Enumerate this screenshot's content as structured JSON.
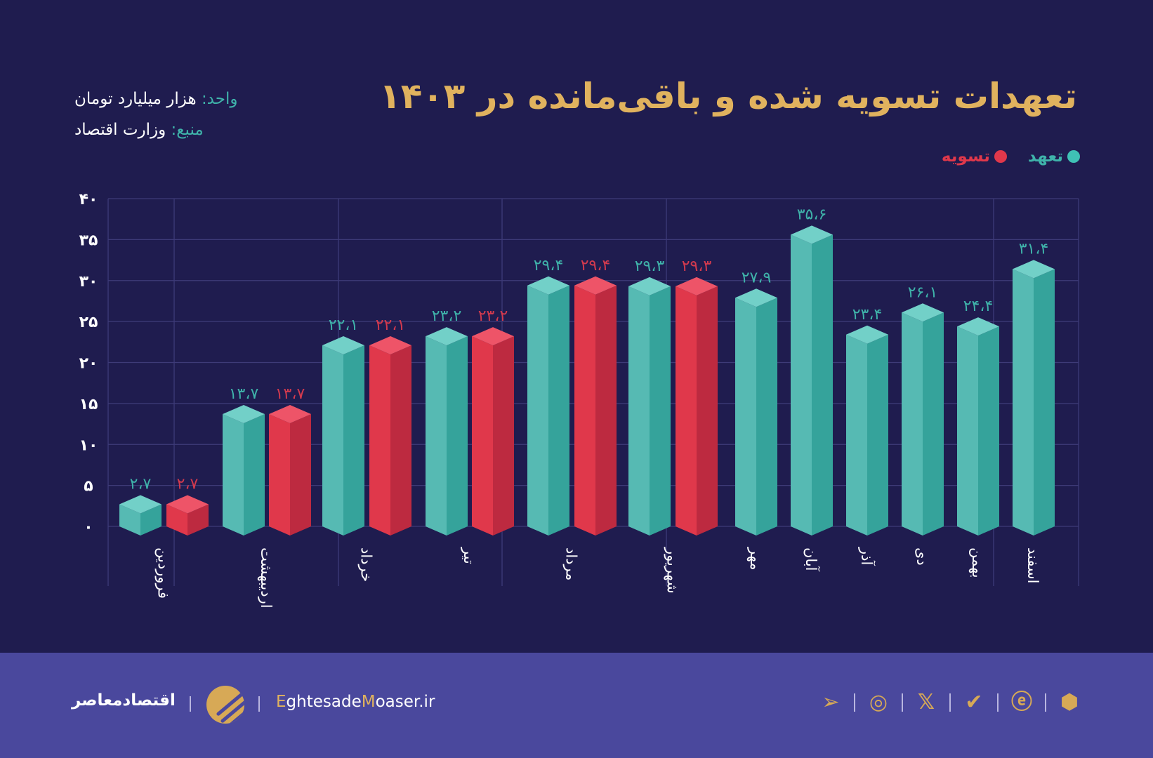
{
  "header": {
    "title": "تعهدات تسویه شده و باقی‌مانده در ۱۴۰۳",
    "unit_key": "واحد:",
    "unit_value": "هزار میلیارد تومان",
    "source_key": "منبع:",
    "source_value": "وزارت اقتصاد"
  },
  "colors": {
    "background": "#1f1c4f",
    "teal": "#4fb8b0",
    "red": "#e0384b",
    "gold": "#e0b25e",
    "footer": "#4a489d"
  },
  "chart_data": {
    "type": "bar",
    "style": "3d-isometric",
    "categories": [
      "فروردین",
      "اردیبهشت",
      "خرداد",
      "تیر",
      "مرداد",
      "شهریور",
      "مهر",
      "آبان",
      "آذر",
      "دی",
      "بهمن",
      "اسفند"
    ],
    "series": [
      {
        "name": "تعهد",
        "color": "#4fb8b0",
        "values": [
          2.7,
          13.7,
          22.1,
          23.2,
          29.4,
          29.3,
          27.9,
          35.6,
          23.4,
          26.1,
          24.4,
          31.4
        ]
      },
      {
        "name": "تسویه",
        "color": "#e0384b",
        "values": [
          2.7,
          13.7,
          22.1,
          23.2,
          29.4,
          29.3,
          null,
          null,
          null,
          null,
          null,
          null
        ]
      }
    ],
    "yticks": [
      0,
      5,
      10,
      15,
      20,
      25,
      30,
      35,
      40
    ],
    "ylim": [
      0,
      40
    ],
    "grid": true,
    "legend": "top-right",
    "number_format": "persian-digits, arabic decimal comma"
  },
  "footer": {
    "brand_fa": "اقتصادمعاصر",
    "site_g1": "E",
    "site_p1": "ghtesade",
    "site_g2": "M",
    "site_p2": "oaser.ir",
    "socials": [
      "telegram-icon",
      "instagram-icon",
      "x-icon",
      "bale-icon",
      "eitaa-icon",
      "rubika-icon"
    ]
  }
}
